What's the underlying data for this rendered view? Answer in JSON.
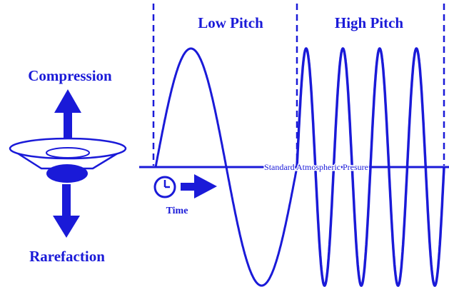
{
  "labels": {
    "compression": "Compression",
    "rarefaction": "Rarefaction",
    "low_pitch": "Low Pitch",
    "high_pitch": "High Pitch",
    "baseline": "Standard Atmospheric Presure",
    "time": "Time"
  },
  "icons": {
    "speaker": "speaker-icon",
    "clock": "clock-icon",
    "arrow_up": "arrow-up-icon",
    "arrow_down": "arrow-down-icon",
    "arrow_right": "arrow-right-icon"
  },
  "colors": {
    "ink": "#1a1ad8",
    "background": "#ffffff"
  },
  "waves": {
    "low_pitch_cycles": 1,
    "high_pitch_cycles": 4
  }
}
